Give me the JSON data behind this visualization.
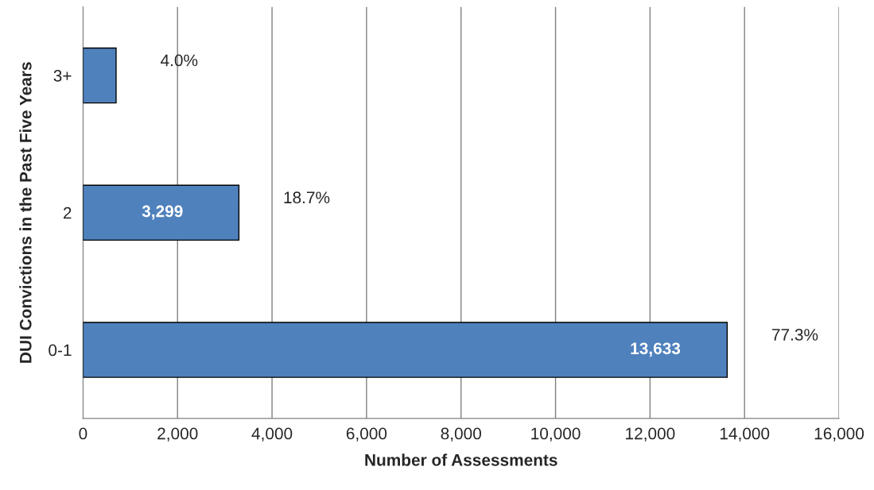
{
  "chart_data": {
    "type": "bar",
    "orientation": "horizontal",
    "xlabel": "Number of Assessments",
    "ylabel": "DUI Convictions in the Past Five Years",
    "categories": [
      "3+",
      "2",
      "0-1"
    ],
    "values": [
      700,
      3299,
      13633
    ],
    "value_labels": [
      null,
      "3,299",
      "13,633"
    ],
    "color": "#4f81bd",
    "xlim": [
      0,
      16000
    ],
    "xticks": [
      {
        "value": 0,
        "label": "0"
      },
      {
        "value": 2000,
        "label": "2,000"
      },
      {
        "value": 4000,
        "label": "4,000"
      },
      {
        "value": 6000,
        "label": "6,000"
      },
      {
        "value": 8000,
        "label": "8,000"
      },
      {
        "value": 10000,
        "label": "10,000"
      },
      {
        "value": 12000,
        "label": "12,000"
      },
      {
        "value": 14000,
        "label": "14,000"
      },
      {
        "value": 16000,
        "label": "16,000"
      }
    ],
    "grid": "x",
    "annotations": [
      "4.0%",
      "18.7%",
      "77.3%"
    ]
  }
}
